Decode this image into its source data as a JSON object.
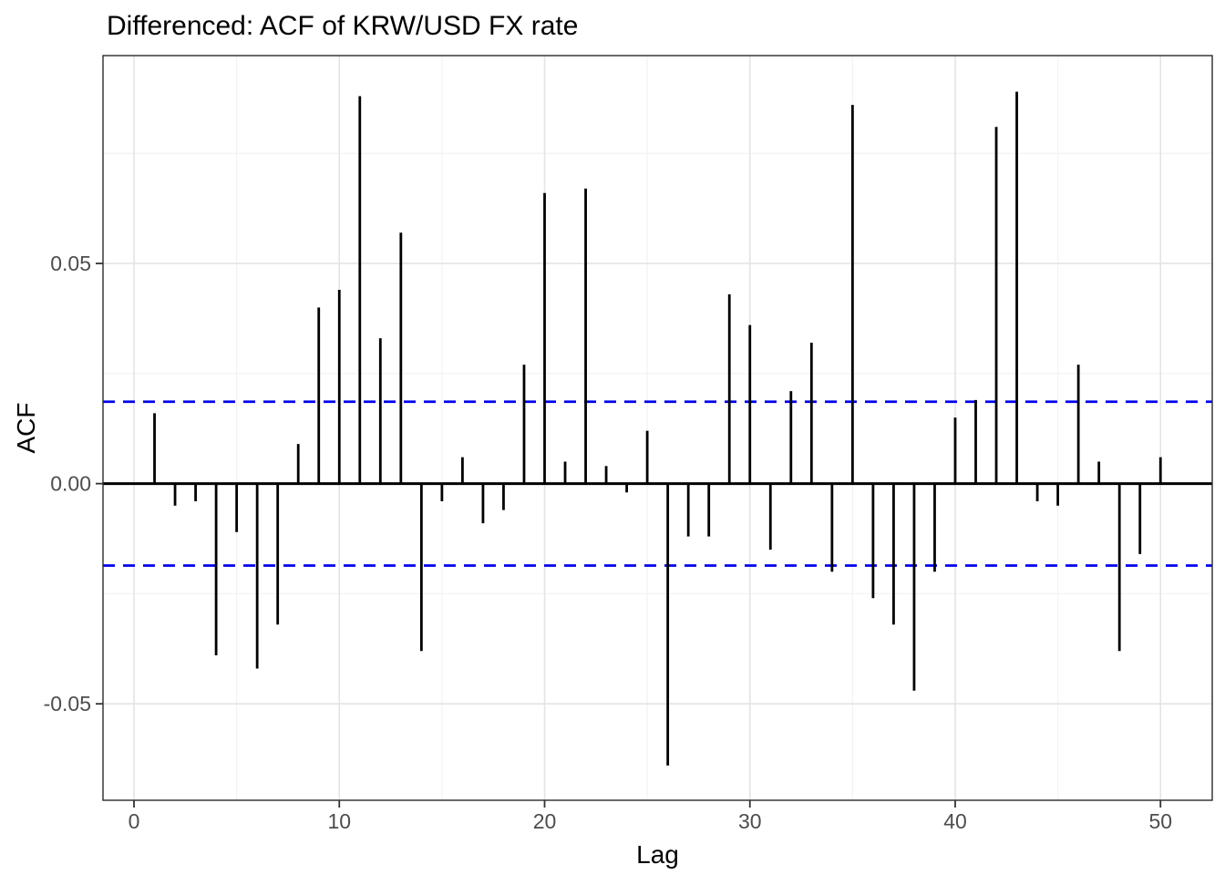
{
  "title": "Differenced: ACF of KRW/USD FX rate",
  "chart_data": {
    "type": "bar",
    "subtype": "acf-stem-plot",
    "title": "Differenced: ACF of KRW/USD FX rate",
    "xlabel": "Lag",
    "ylabel": "ACF",
    "x": [
      1,
      2,
      3,
      4,
      5,
      6,
      7,
      8,
      9,
      10,
      11,
      12,
      13,
      14,
      15,
      16,
      17,
      18,
      19,
      20,
      21,
      22,
      23,
      24,
      25,
      26,
      27,
      28,
      29,
      30,
      31,
      32,
      33,
      34,
      35,
      36,
      37,
      38,
      39,
      40,
      41,
      42,
      43,
      44,
      45,
      46,
      47,
      48,
      49,
      50
    ],
    "values": [
      0.016,
      -0.005,
      -0.004,
      -0.039,
      -0.011,
      -0.042,
      -0.032,
      0.009,
      0.04,
      0.044,
      0.088,
      0.033,
      0.057,
      -0.038,
      -0.004,
      0.006,
      -0.009,
      -0.006,
      0.027,
      0.066,
      0.005,
      0.067,
      0.004,
      -0.002,
      0.012,
      -0.064,
      -0.012,
      -0.012,
      0.043,
      0.036,
      -0.015,
      0.021,
      0.032,
      -0.02,
      0.086,
      -0.026,
      -0.032,
      -0.047,
      -0.02,
      0.015,
      0.019,
      0.081,
      0.089,
      -0.004,
      -0.005,
      0.027,
      0.005,
      -0.038,
      -0.016,
      0.006
    ],
    "ci_upper": 0.0186,
    "ci_lower": -0.0186,
    "ci_style": "dashed",
    "ci_color": "#0000EE",
    "bar_color": "#000000",
    "zero_line_color": "#000000",
    "x_ticks": [
      0,
      10,
      20,
      30,
      40,
      50
    ],
    "x_tick_labels": [
      "0",
      "10",
      "20",
      "30",
      "40",
      "50"
    ],
    "y_ticks": [
      -0.05,
      0,
      0.05
    ],
    "y_tick_labels": [
      "-0.05",
      "0.00",
      "0.05"
    ],
    "x_minor_gridlines": [
      5,
      15,
      25,
      35,
      45
    ],
    "y_minor_gridlines": [
      0.075,
      0.025,
      -0.025
    ],
    "xlim": [
      -1.51,
      52.52
    ],
    "ylim": [
      -0.0719,
      0.0972
    ],
    "grid": true,
    "legend": false,
    "grid_major_color": "#E4E4E4",
    "grid_minor_color": "#F3F3F3",
    "panel_border_color": "#2B2B2B",
    "tick_label_color": "#4D4D4D"
  }
}
